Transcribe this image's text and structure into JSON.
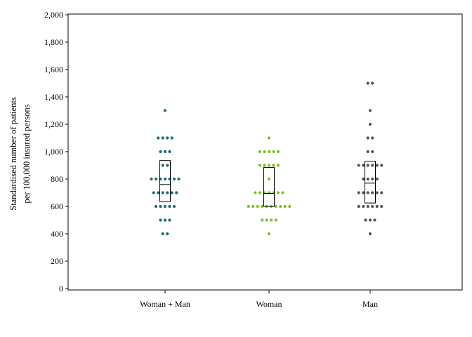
{
  "chart_data": {
    "type": "scatter",
    "subtype": "dot-plot-with-iqr-box",
    "title": "",
    "xlabel": "",
    "ylabel": [
      "Standardised number of patients",
      "per 100,000 insured persons"
    ],
    "ylim": [
      0,
      2000
    ],
    "yticks": [
      0,
      200,
      400,
      600,
      800,
      1000,
      1200,
      1400,
      1600,
      1800,
      2000
    ],
    "ytick_labels": [
      "0",
      "200",
      "400",
      "600",
      "800",
      "1,000",
      "1,200",
      "1,400",
      "1,600",
      "1,800",
      "2,000"
    ],
    "categories": [
      "Woman + Man",
      "Woman",
      "Man"
    ],
    "grid": false,
    "series": [
      {
        "category": "Woman + Man",
        "color": "#1f6b6e",
        "values": [
          400,
          400,
          500,
          500,
          500,
          600,
          600,
          600,
          600,
          600,
          700,
          700,
          700,
          700,
          700,
          700,
          800,
          800,
          800,
          800,
          800,
          800,
          800,
          900,
          900,
          1000,
          1000,
          1000,
          1100,
          1100,
          1100,
          1100,
          1300
        ],
        "box": {
          "q1": 635,
          "median": 760,
          "q3": 935
        }
      },
      {
        "category": "Woman",
        "color": "#7dc21e",
        "values": [
          400,
          500,
          500,
          500,
          500,
          600,
          600,
          600,
          600,
          600,
          600,
          600,
          600,
          600,
          600,
          700,
          700,
          700,
          700,
          700,
          700,
          700,
          800,
          900,
          900,
          900,
          900,
          900,
          1000,
          1000,
          1000,
          1000,
          1000,
          1100
        ],
        "box": {
          "q1": 600,
          "median": 695,
          "q3": 885
        }
      },
      {
        "category": "Man",
        "color": "#555555",
        "values": [
          400,
          500,
          500,
          500,
          600,
          600,
          600,
          600,
          600,
          600,
          700,
          700,
          700,
          700,
          700,
          700,
          800,
          800,
          800,
          800,
          900,
          900,
          900,
          900,
          900,
          900,
          1000,
          1000,
          1100,
          1100,
          1200,
          1300,
          1500,
          1500
        ],
        "box": {
          "q1": 625,
          "median": 770,
          "q3": 930
        }
      }
    ]
  }
}
